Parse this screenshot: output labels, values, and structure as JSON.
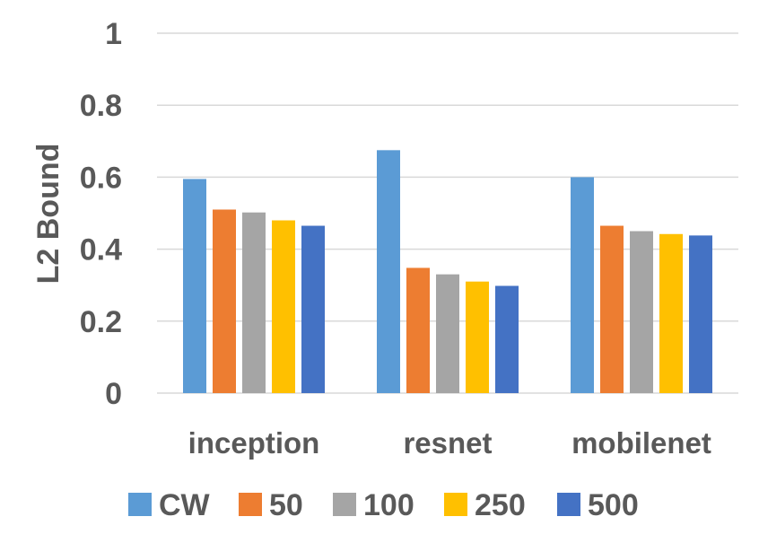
{
  "chart_data": {
    "type": "bar",
    "title": "",
    "xlabel": "",
    "ylabel": "L2 Bound",
    "ylim": [
      0,
      1
    ],
    "yticks": [
      "0",
      "0.2",
      "0.4",
      "0.6",
      "0.8",
      "1"
    ],
    "grid": true,
    "legend_position": "bottom",
    "categories": [
      "inception",
      "resnet",
      "mobilenet"
    ],
    "series": [
      {
        "name": "CW",
        "color": "#5b9bd5",
        "values": [
          0.595,
          0.675,
          0.6
        ]
      },
      {
        "name": "50",
        "color": "#ed7d31",
        "values": [
          0.51,
          0.348,
          0.465
        ]
      },
      {
        "name": "100",
        "color": "#a5a5a5",
        "values": [
          0.502,
          0.33,
          0.45
        ]
      },
      {
        "name": "250",
        "color": "#ffc000",
        "values": [
          0.48,
          0.31,
          0.442
        ]
      },
      {
        "name": "500",
        "color": "#4472c4",
        "values": [
          0.465,
          0.298,
          0.438
        ]
      }
    ]
  }
}
